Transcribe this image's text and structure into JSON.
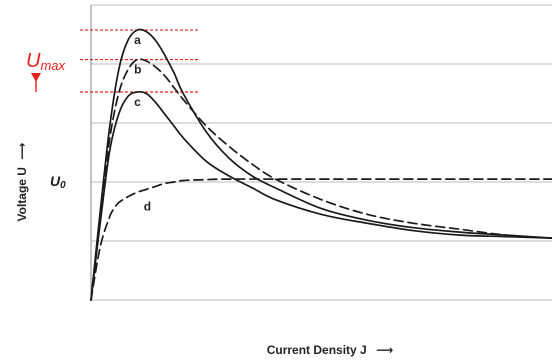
{
  "chart_data": {
    "type": "line",
    "title": "",
    "xlabel": "Current Density J",
    "ylabel": "Voltage U",
    "xlim": [
      0,
      100
    ],
    "ylim": [
      0,
      100
    ],
    "grid": true,
    "legend": "none",
    "annotations": {
      "umax_label": "U",
      "umax_sub": "max",
      "u0_label": "U",
      "u0_sub": "0",
      "arrow": "⟶"
    },
    "colors": {
      "curve": "#1a1a1a",
      "umax": "#e8201c",
      "grid": "#bbbbbb",
      "text": "#222222"
    },
    "series": [
      {
        "label": "a",
        "style": "solid",
        "x": [
          0,
          2,
          4,
          6,
          8,
          10,
          12,
          14,
          16,
          18,
          20,
          25,
          30,
          35,
          40,
          50,
          60,
          70,
          80,
          90,
          100
        ],
        "y": [
          0,
          30,
          58,
          78,
          88,
          91.5,
          91,
          88,
          83,
          77,
          70,
          57,
          48,
          42,
          38,
          31,
          27,
          24.5,
          23,
          22,
          21
        ]
      },
      {
        "label": "b",
        "style": "dashed",
        "x": [
          0,
          2,
          4,
          6,
          8,
          10,
          12,
          14,
          16,
          18,
          20,
          25,
          30,
          35,
          40,
          50,
          60,
          70,
          80,
          90,
          100
        ],
        "y": [
          0,
          28,
          54,
          70,
          78,
          81.5,
          81,
          79,
          76,
          72,
          68,
          59,
          52,
          46,
          41,
          34,
          29,
          26,
          24,
          22,
          21
        ]
      },
      {
        "label": "c",
        "style": "solid",
        "x": [
          0,
          2,
          4,
          6,
          8,
          10,
          12,
          14,
          16,
          18,
          20,
          25,
          30,
          35,
          40,
          50,
          60,
          70,
          80,
          90,
          100
        ],
        "y": [
          0,
          26,
          50,
          63,
          69,
          70.5,
          70,
          67,
          63,
          59,
          55,
          47,
          42,
          38,
          34,
          29,
          26,
          23.5,
          22,
          21.5,
          21
        ]
      },
      {
        "label": "d",
        "style": "dashed",
        "x": [
          0,
          2,
          4,
          5,
          6,
          8,
          10,
          12,
          14,
          16,
          18,
          20,
          25,
          30,
          40,
          50,
          60,
          70,
          80,
          90,
          100
        ],
        "y": [
          0,
          18,
          28,
          31,
          33,
          35,
          36.5,
          37.5,
          38.5,
          39.5,
          40,
          40.5,
          40.8,
          41,
          41,
          41,
          41,
          41,
          41,
          41,
          41
        ]
      }
    ]
  }
}
